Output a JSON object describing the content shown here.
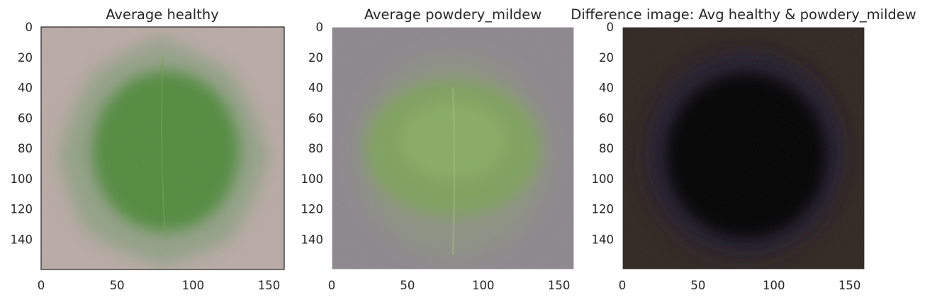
{
  "chart_data": [
    {
      "type": "image",
      "title": "Average healthy",
      "xlabel": "",
      "ylabel": "",
      "xlim": [
        0,
        160
      ],
      "ylim": [
        160,
        0
      ],
      "xticks": [
        0,
        50,
        100,
        150
      ],
      "yticks": [
        0,
        20,
        40,
        60,
        80,
        100,
        120,
        140
      ],
      "grid": false,
      "colors": {
        "background": "#b9aaa5",
        "leaf": "#4f8a3a",
        "leaf_edge": "#8fa084"
      }
    },
    {
      "type": "image",
      "title": "Average powdery_mildew",
      "xlabel": "",
      "ylabel": "",
      "xlim": [
        0,
        160
      ],
      "ylim": [
        160,
        0
      ],
      "xticks": [
        0,
        50,
        100,
        150
      ],
      "yticks": [
        0,
        20,
        40,
        60,
        80,
        100,
        120,
        140
      ],
      "grid": false,
      "colors": {
        "background": "#8c878d",
        "leaf": "#7ea35a",
        "leaf_edge": "#8d957f"
      }
    },
    {
      "type": "image",
      "title": "Difference image: Avg healthy & powdery_mildew",
      "xlabel": "",
      "ylabel": "",
      "xlim": [
        0,
        160
      ],
      "ylim": [
        160,
        0
      ],
      "xticks": [
        0,
        50,
        100,
        150
      ],
      "yticks": [
        0,
        20,
        40,
        60,
        80,
        100,
        120,
        140
      ],
      "grid": false,
      "colors": {
        "background": "#2f2520",
        "leaf": "#050205",
        "leaf_edge": "#241c2e"
      }
    }
  ]
}
